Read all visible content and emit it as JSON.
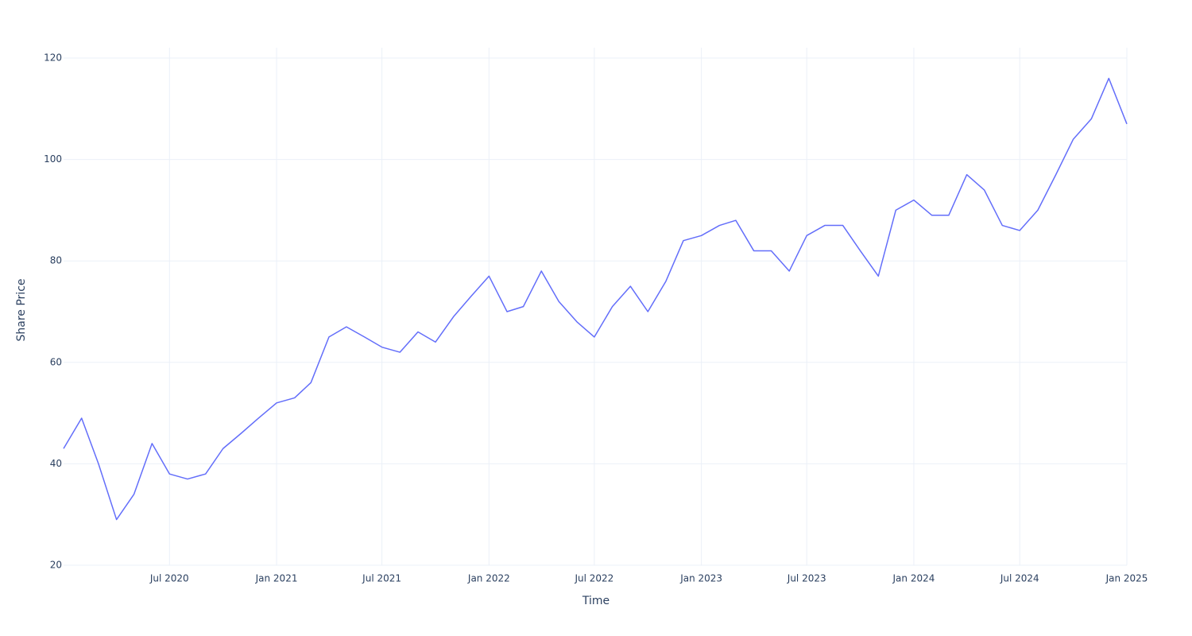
{
  "chart_data": {
    "type": "line",
    "x_label": "Time",
    "y_label": "Share Price",
    "x": [
      "2020-01",
      "2020-02",
      "2020-03",
      "2020-04",
      "2020-05",
      "2020-06",
      "2020-07",
      "2020-08",
      "2020-09",
      "2020-10",
      "2020-11",
      "2020-12",
      "2021-01",
      "2021-02",
      "2021-03",
      "2021-04",
      "2021-05",
      "2021-06",
      "2021-07",
      "2021-08",
      "2021-09",
      "2021-10",
      "2021-11",
      "2021-12",
      "2022-01",
      "2022-02",
      "2022-03",
      "2022-04",
      "2022-05",
      "2022-06",
      "2022-07",
      "2022-08",
      "2022-09",
      "2022-10",
      "2022-11",
      "2022-12",
      "2023-01",
      "2023-02",
      "2023-03",
      "2023-04",
      "2023-05",
      "2023-06",
      "2023-07",
      "2023-08",
      "2023-09",
      "2023-10",
      "2023-11",
      "2023-12",
      "2024-01",
      "2024-02",
      "2024-03",
      "2024-04",
      "2024-05",
      "2024-06",
      "2024-07",
      "2024-08",
      "2024-09",
      "2024-10",
      "2024-11",
      "2024-12",
      "2025-01"
    ],
    "series": [
      {
        "color": "#636efa",
        "values": [
          43,
          49,
          40,
          29,
          34,
          44,
          38,
          37,
          38,
          43,
          46,
          49,
          52,
          53,
          56,
          65,
          67,
          65,
          63,
          62,
          66,
          64,
          69,
          73,
          77,
          70,
          71,
          78,
          72,
          68,
          65,
          71,
          75,
          70,
          76,
          84,
          85,
          87,
          88,
          82,
          82,
          78,
          85,
          87,
          87,
          82,
          77,
          90,
          92,
          89,
          89,
          97,
          94,
          87,
          86,
          90,
          97,
          104,
          108,
          116,
          107
        ]
      }
    ],
    "xlim": [
      "2020-01",
      "2025-01"
    ],
    "xticks": [
      {
        "value": "2020-07",
        "label": "Jul 2020"
      },
      {
        "value": "2021-01",
        "label": "Jan 2021"
      },
      {
        "value": "2021-07",
        "label": "Jul 2021"
      },
      {
        "value": "2022-01",
        "label": "Jan 2022"
      },
      {
        "value": "2022-07",
        "label": "Jul 2022"
      },
      {
        "value": "2023-01",
        "label": "Jan 2023"
      },
      {
        "value": "2023-07",
        "label": "Jul 2023"
      },
      {
        "value": "2024-01",
        "label": "Jan 2024"
      },
      {
        "value": "2024-07",
        "label": "Jul 2024"
      },
      {
        "value": "2025-01",
        "label": "Jan 2025"
      }
    ],
    "ylim": [
      20,
      120
    ],
    "yticks": [
      20,
      40,
      60,
      80,
      100,
      120
    ],
    "grid": true
  }
}
